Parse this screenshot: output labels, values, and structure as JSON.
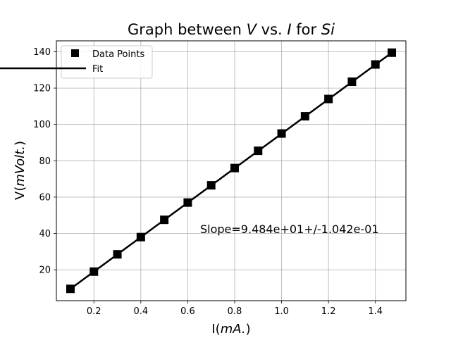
{
  "chart_data": {
    "type": "scatter",
    "title": {
      "prefix": "Graph between ",
      "var_y": "V",
      "middle": " vs. ",
      "var_x": "I",
      "suffix": " for ",
      "material": "Si"
    },
    "xlabel": {
      "prefix": "I(",
      "italic": "mA.",
      "suffix": ")"
    },
    "ylabel": {
      "prefix": "V(",
      "italic": "mVolt.",
      "suffix": ")"
    },
    "xlim": [
      0.04,
      1.53
    ],
    "ylim": [
      3,
      146
    ],
    "xticks": [
      0.2,
      0.4,
      0.6,
      0.8,
      1.0,
      1.2,
      1.4
    ],
    "xtick_labels": [
      "0.2",
      "0.4",
      "0.6",
      "0.8",
      "1.0",
      "1.2",
      "1.4"
    ],
    "yticks": [
      20,
      40,
      60,
      80,
      100,
      120,
      140
    ],
    "ytick_labels": [
      "20",
      "40",
      "60",
      "80",
      "100",
      "120",
      "140"
    ],
    "grid": true,
    "legend_position": "top-left",
    "series": [
      {
        "name": "Data Points",
        "kind": "markers",
        "marker": "square",
        "color": "#000000",
        "x": [
          0.1,
          0.2,
          0.3,
          0.4,
          0.5,
          0.6,
          0.7,
          0.8,
          0.9,
          1.0,
          1.1,
          1.2,
          1.3,
          1.4,
          1.47
        ],
        "y": [
          9.5,
          19.0,
          28.5,
          38.0,
          47.5,
          57.0,
          66.5,
          76.0,
          85.5,
          95.0,
          104.5,
          114.0,
          123.5,
          133.0,
          139.5
        ]
      },
      {
        "name": "Fit",
        "kind": "line",
        "color": "#000000",
        "x": [
          0.1,
          1.47
        ],
        "y": [
          9.5,
          139.5
        ]
      }
    ],
    "annotation": {
      "text": "Slope=9.484e+01+/-1.042e-01",
      "x": 0.65,
      "y": 41
    }
  }
}
